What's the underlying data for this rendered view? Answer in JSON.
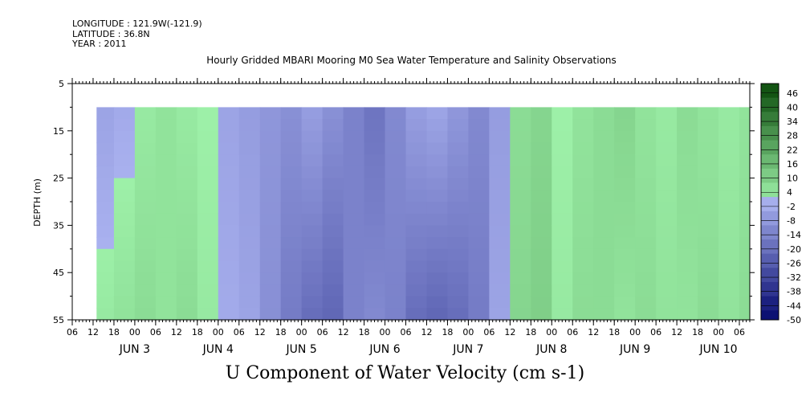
{
  "header": {
    "longitude": "LONGITUDE : 121.9W(-121.9)",
    "latitude": "LATITUDE : 36.8N",
    "year": "YEAR : 2011"
  },
  "chart_data": {
    "type": "heatmap",
    "title": "Hourly Gridded MBARI Mooring M0 Sea Water Temperature and Salinity Observations",
    "xlabel": "U Component of Water Velocity (cm s-1)",
    "ylabel": "DEPTH (m)",
    "y_ticks": [
      5,
      15,
      25,
      35,
      45,
      55
    ],
    "ylim": [
      55,
      5
    ],
    "y_data_range": [
      10,
      55
    ],
    "x_hour_ticks": [
      "06",
      "12",
      "18",
      "00",
      "06",
      "12",
      "18",
      "00",
      "06",
      "12",
      "18",
      "00",
      "06",
      "12",
      "18",
      "00",
      "06",
      "12",
      "18",
      "00",
      "06",
      "12",
      "18",
      "00",
      "06",
      "12",
      "18",
      "00",
      "06",
      "12",
      "18",
      "00",
      "06"
    ],
    "x_date_labels": [
      "JUN  3",
      "JUN  4",
      "JUN  5",
      "JUN  6",
      "JUN  7",
      "JUN  8",
      "JUN  9",
      "JUN 10"
    ],
    "xlim": [
      "2011-06-02T06:00",
      "2011-06-10T09:00"
    ],
    "x_data_start": "2011-06-02T13:00",
    "colorbar": {
      "labels": [
        "46",
        "40",
        "34",
        "28",
        "22",
        "16",
        "10",
        "4",
        "-2",
        "-8",
        "-14",
        "-20",
        "-26",
        "-32",
        "-38",
        "-44",
        "-50"
      ],
      "min": -50,
      "max": 50,
      "step": 6
    },
    "colors": {
      "positive_strong": "#0a4a0a",
      "positive_weak": "#9df0a8",
      "negative_weak": "#a9b1ef",
      "negative_strong": "#050a6e"
    },
    "column_profile_u_cm_s": {
      "times": [
        "2011-06-02T13:00",
        "2011-06-02T18:00",
        "2011-06-03T00:00",
        "2011-06-03T06:00",
        "2011-06-03T12:00",
        "2011-06-03T18:00",
        "2011-06-04T00:00",
        "2011-06-04T06:00",
        "2011-06-04T12:00",
        "2011-06-04T18:00",
        "2011-06-05T00:00",
        "2011-06-05T06:00",
        "2011-06-05T12:00",
        "2011-06-05T18:00",
        "2011-06-06T00:00",
        "2011-06-06T06:00",
        "2011-06-06T12:00",
        "2011-06-06T18:00",
        "2011-06-07T00:00",
        "2011-06-07T06:00",
        "2011-06-07T12:00",
        "2011-06-07T18:00",
        "2011-06-08T00:00",
        "2011-06-08T06:00",
        "2011-06-08T12:00",
        "2011-06-08T18:00",
        "2011-06-09T00:00",
        "2011-06-09T06:00",
        "2011-06-09T12:00",
        "2011-06-09T18:00",
        "2011-06-10T00:00",
        "2011-06-10T06:00"
      ],
      "u_shallow": [
        -4,
        -2,
        2,
        4,
        2,
        0,
        -4,
        -6,
        -8,
        -10,
        -6,
        -10,
        -14,
        -18,
        -12,
        -6,
        -4,
        -8,
        -12,
        -6,
        6,
        8,
        0,
        4,
        6,
        8,
        4,
        2,
        6,
        4,
        2,
        4
      ],
      "u_deep": [
        2,
        4,
        6,
        4,
        6,
        2,
        -2,
        -4,
        -10,
        -16,
        -20,
        -22,
        -14,
        -12,
        -14,
        -20,
        -22,
        -20,
        -16,
        -4,
        8,
        10,
        2,
        6,
        6,
        4,
        6,
        4,
        4,
        6,
        4,
        6
      ]
    }
  }
}
